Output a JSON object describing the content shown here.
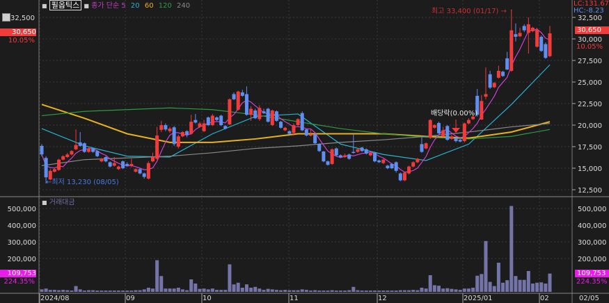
{
  "header": {
    "stock_name": "필옵틱스",
    "ma_label": "종가 단순",
    "ma_periods": [
      "5",
      "20",
      "60",
      "120",
      "240"
    ],
    "ma_colors": [
      "#d13fd1",
      "#27b3d0",
      "#e8b21a",
      "#2f9a44",
      "#8a8a8a"
    ],
    "lc": "LC:131.67",
    "hc": "HC:-8.23",
    "volume_title": "거래대금"
  },
  "colors": {
    "up": "#f23b3b",
    "down": "#5f8ff0",
    "volume": "#7474a8",
    "price_badge": "#f23b3b",
    "volume_badge": "#e81ee8"
  },
  "price_badge": {
    "value": "30,650",
    "change": "10.05%"
  },
  "volume_badge": {
    "value": "109,753",
    "change": "224.35%"
  },
  "annotations": {
    "high": "최고 33,400 (01/17) →",
    "low": "←최저 13,230 (08/05)",
    "ex_dividend": "배당락(0.00%)"
  },
  "x_ticks": [
    "2024/08",
    "09",
    "10",
    "11",
    "12",
    "2025/01",
    "02"
  ],
  "x_end_label": "02/05",
  "chart_data": {
    "type": "candlestick",
    "price_axis": {
      "ticks": [
        "32,500",
        "30,000",
        "27,500",
        "25,000",
        "22,500",
        "20,000",
        "17,500",
        "15,000",
        "12,500"
      ],
      "range": [
        12500,
        32500
      ]
    },
    "volume_axis": {
      "ticks": [
        "500,000",
        "400,000",
        "300,000",
        "200,000"
      ],
      "range": [
        0,
        500000
      ]
    },
    "candles_ohlc": [
      [
        17600,
        17800,
        16400,
        16600
      ],
      [
        16200,
        16400,
        13230,
        13950
      ],
      [
        13700,
        14900,
        13600,
        14700
      ],
      [
        14600,
        15100,
        14500,
        14900
      ],
      [
        14800,
        16100,
        14700,
        16000
      ],
      [
        16000,
        16500,
        15900,
        16400
      ],
      [
        16300,
        16800,
        16200,
        16600
      ],
      [
        16600,
        17100,
        16500,
        17000
      ],
      [
        17200,
        19500,
        17100,
        17700
      ],
      [
        18000,
        19200,
        17500,
        17600
      ],
      [
        17900,
        18000,
        16800,
        16900
      ],
      [
        16900,
        17400,
        16800,
        17300
      ],
      [
        17300,
        17400,
        16800,
        16900
      ],
      [
        17000,
        17100,
        16300,
        16400
      ],
      [
        15800,
        16200,
        15700,
        16100
      ],
      [
        16300,
        16400,
        15700,
        15800
      ],
      [
        15700,
        15800,
        15100,
        15200
      ],
      [
        15300,
        16300,
        15200,
        15600
      ],
      [
        14900,
        15300,
        14800,
        15200
      ],
      [
        15800,
        15900,
        14900,
        15000
      ],
      [
        15500,
        15700,
        15200,
        15300
      ],
      [
        15300,
        16100,
        15100,
        15500
      ],
      [
        14600,
        15000,
        14500,
        14900
      ],
      [
        14900,
        15000,
        14300,
        14400
      ],
      [
        14400,
        14500,
        13800,
        14000
      ],
      [
        13800,
        15800,
        13700,
        15600
      ],
      [
        15800,
        16800,
        15700,
        16300
      ],
      [
        16100,
        19800,
        16000,
        18800
      ],
      [
        19450,
        20500,
        19200,
        20000
      ],
      [
        20000,
        20200,
        19300,
        19500
      ],
      [
        19300,
        19800,
        19100,
        19600
      ],
      [
        19750,
        19900,
        17600,
        17800
      ],
      [
        17500,
        18900,
        17300,
        18700
      ],
      [
        18700,
        19300,
        18600,
        19200
      ],
      [
        19300,
        19400,
        18600,
        18900
      ],
      [
        19000,
        21200,
        18900,
        20400
      ],
      [
        20600,
        21300,
        20200,
        20300
      ],
      [
        19800,
        20400,
        19700,
        20200
      ],
      [
        19300,
        20600,
        19200,
        20200
      ],
      [
        20900,
        21000,
        19900,
        20000
      ],
      [
        20000,
        21300,
        19900,
        21100
      ],
      [
        20900,
        21000,
        20500,
        20600
      ],
      [
        21100,
        21200,
        19900,
        20000
      ],
      [
        19900,
        20000,
        19500,
        19600
      ],
      [
        20100,
        23100,
        20000,
        23000
      ],
      [
        23600,
        23800,
        22900,
        23000
      ],
      [
        21800,
        24000,
        21700,
        23900
      ],
      [
        23800,
        24100,
        23300,
        23400
      ],
      [
        23600,
        24500,
        21100,
        21200
      ],
      [
        21200,
        22200,
        20500,
        21900
      ],
      [
        21700,
        21900,
        20700,
        20800
      ],
      [
        20700,
        22300,
        20500,
        22000
      ],
      [
        21600,
        21900,
        21300,
        21400
      ],
      [
        21900,
        22000,
        20300,
        20400
      ],
      [
        20000,
        21800,
        19900,
        21700
      ],
      [
        21600,
        21700,
        20400,
        20500
      ],
      [
        20400,
        20500,
        19600,
        19700
      ],
      [
        19400,
        19800,
        19300,
        19700
      ],
      [
        19300,
        19400,
        18900,
        19000
      ],
      [
        19100,
        20200,
        18800,
        20000
      ],
      [
        20000,
        20800,
        19900,
        20700
      ],
      [
        21400,
        21600,
        19300,
        19400
      ],
      [
        19500,
        19600,
        18700,
        18800
      ],
      [
        18800,
        19500,
        18700,
        18900
      ],
      [
        18950,
        19000,
        17800,
        17900
      ],
      [
        17800,
        17900,
        16900,
        17000
      ],
      [
        16950,
        17000,
        15700,
        15800
      ],
      [
        15800,
        15900,
        15300,
        15400
      ],
      [
        15500,
        17300,
        15400,
        17200
      ],
      [
        17300,
        17400,
        16400,
        16500
      ],
      [
        16500,
        16600,
        16200,
        16300
      ],
      [
        16300,
        16700,
        16200,
        16500
      ],
      [
        16600,
        16700,
        16000,
        16100
      ],
      [
        16900,
        18900,
        16700,
        16800
      ],
      [
        16900,
        17300,
        16800,
        17200
      ],
      [
        17400,
        17500,
        16900,
        17000
      ],
      [
        17200,
        17300,
        16600,
        16700
      ],
      [
        16500,
        16900,
        16400,
        16800
      ],
      [
        16800,
        16900,
        15700,
        15800
      ],
      [
        15900,
        16000,
        15600,
        15700
      ],
      [
        15600,
        16100,
        15500,
        16000
      ],
      [
        15300,
        15400,
        14900,
        15000
      ],
      [
        15500,
        15600,
        14900,
        15000
      ],
      [
        15700,
        15800,
        14500,
        14700
      ],
      [
        14400,
        14500,
        13500,
        13600
      ],
      [
        13600,
        14600,
        13500,
        14500
      ],
      [
        14400,
        15300,
        14300,
        15200
      ],
      [
        15200,
        15800,
        15100,
        15700
      ],
      [
        15700,
        16200,
        15600,
        16100
      ],
      [
        17800,
        18600,
        16800,
        16900
      ],
      [
        17300,
        18000,
        17200,
        17900
      ],
      [
        18550,
        20700,
        18400,
        20600
      ],
      [
        19700,
        20100,
        19600,
        20000
      ],
      [
        20250,
        20400,
        19000,
        19050
      ],
      [
        18700,
        19800,
        18600,
        19400
      ],
      [
        19900,
        20000,
        18200,
        18300
      ],
      [
        18400,
        18900,
        18300,
        18700
      ],
      [
        18500,
        18700,
        18000,
        18150
      ],
      [
        18300,
        18400,
        18000,
        18100
      ],
      [
        18150,
        20300,
        18000,
        20200
      ],
      [
        20200,
        20800,
        20100,
        20600
      ],
      [
        20700,
        21200,
        20600,
        21000
      ],
      [
        23400,
        24200,
        21000,
        21200
      ],
      [
        20650,
        23500,
        20600,
        22800
      ],
      [
        23300,
        26700,
        23000,
        23600
      ],
      [
        25900,
        26300,
        24200,
        24350
      ],
      [
        24400,
        25000,
        24300,
        24900
      ],
      [
        25500,
        26900,
        25400,
        26300
      ],
      [
        26200,
        26300,
        25600,
        25700
      ],
      [
        27750,
        28500,
        26400,
        26450
      ],
      [
        26300,
        33400,
        26200,
        31000
      ],
      [
        30550,
        31800,
        29700,
        30250
      ],
      [
        30300,
        31300,
        30200,
        30700
      ],
      [
        31500,
        31700,
        30800,
        31000
      ],
      [
        30700,
        32500,
        28300,
        31700
      ],
      [
        30900,
        31400,
        30800,
        31300
      ],
      [
        29100,
        31300,
        29000,
        31050
      ],
      [
        30250,
        30400,
        28500,
        28600
      ],
      [
        29400,
        29600,
        27700,
        27800
      ],
      [
        28000,
        31500,
        27900,
        30650
      ]
    ],
    "volume": [
      15000,
      20000,
      12000,
      12000,
      10000,
      12000,
      10000,
      8000,
      35000,
      15000,
      8000,
      10000,
      10000,
      8000,
      8000,
      8000,
      8000,
      8000,
      8000,
      8000,
      8000,
      8000,
      10000,
      10000,
      15000,
      25000,
      20000,
      190000,
      95000,
      20000,
      20000,
      20000,
      25000,
      15000,
      10000,
      75000,
      50000,
      18000,
      20000,
      15000,
      20000,
      12000,
      12000,
      12000,
      165000,
      45000,
      55000,
      25000,
      45000,
      25000,
      30000,
      20000,
      12000,
      18000,
      15000,
      12000,
      10000,
      12000,
      10000,
      10000,
      10000,
      15000,
      12000,
      8000,
      10000,
      8000,
      8000,
      8000,
      10000,
      8000,
      8000,
      8000,
      10000,
      30000,
      10000,
      8000,
      8000,
      8000,
      8000,
      8000,
      8000,
      8000,
      8000,
      8000,
      10000,
      10000,
      10000,
      12000,
      10000,
      25000,
      20000,
      100000,
      40000,
      37000,
      20000,
      22000,
      18000,
      15000,
      12000,
      20000,
      20000,
      25000,
      97000,
      107000,
      305000,
      60000,
      35000,
      175000,
      55000,
      70000,
      515000,
      95000,
      72000,
      72000,
      125000,
      50000,
      55000,
      57000,
      50000,
      109753
    ],
    "moving_averages_sampled_every_10_candles": {
      "20": [
        19600,
        17600,
        16400,
        16300,
        19000,
        21000,
        21300,
        17800,
        16600,
        15900,
        17800,
        22400,
        27000
      ],
      "60": [
        22400,
        20800,
        19000,
        18000,
        18000,
        18400,
        19000,
        19000,
        19000,
        18700,
        18500,
        19200,
        20400
      ],
      "120": [
        21100,
        21600,
        21800,
        22000,
        21800,
        21200,
        20400,
        19600,
        19000,
        18600,
        18400,
        18700,
        19500
      ],
      "240": [
        15300,
        16000,
        16200,
        16400,
        16800,
        17300,
        17600,
        18000,
        18300,
        18700,
        19200,
        19800,
        20200
      ]
    },
    "ex_dividend_candle_index": 97,
    "high_candle_index": 110,
    "low_candle_index": 1
  }
}
